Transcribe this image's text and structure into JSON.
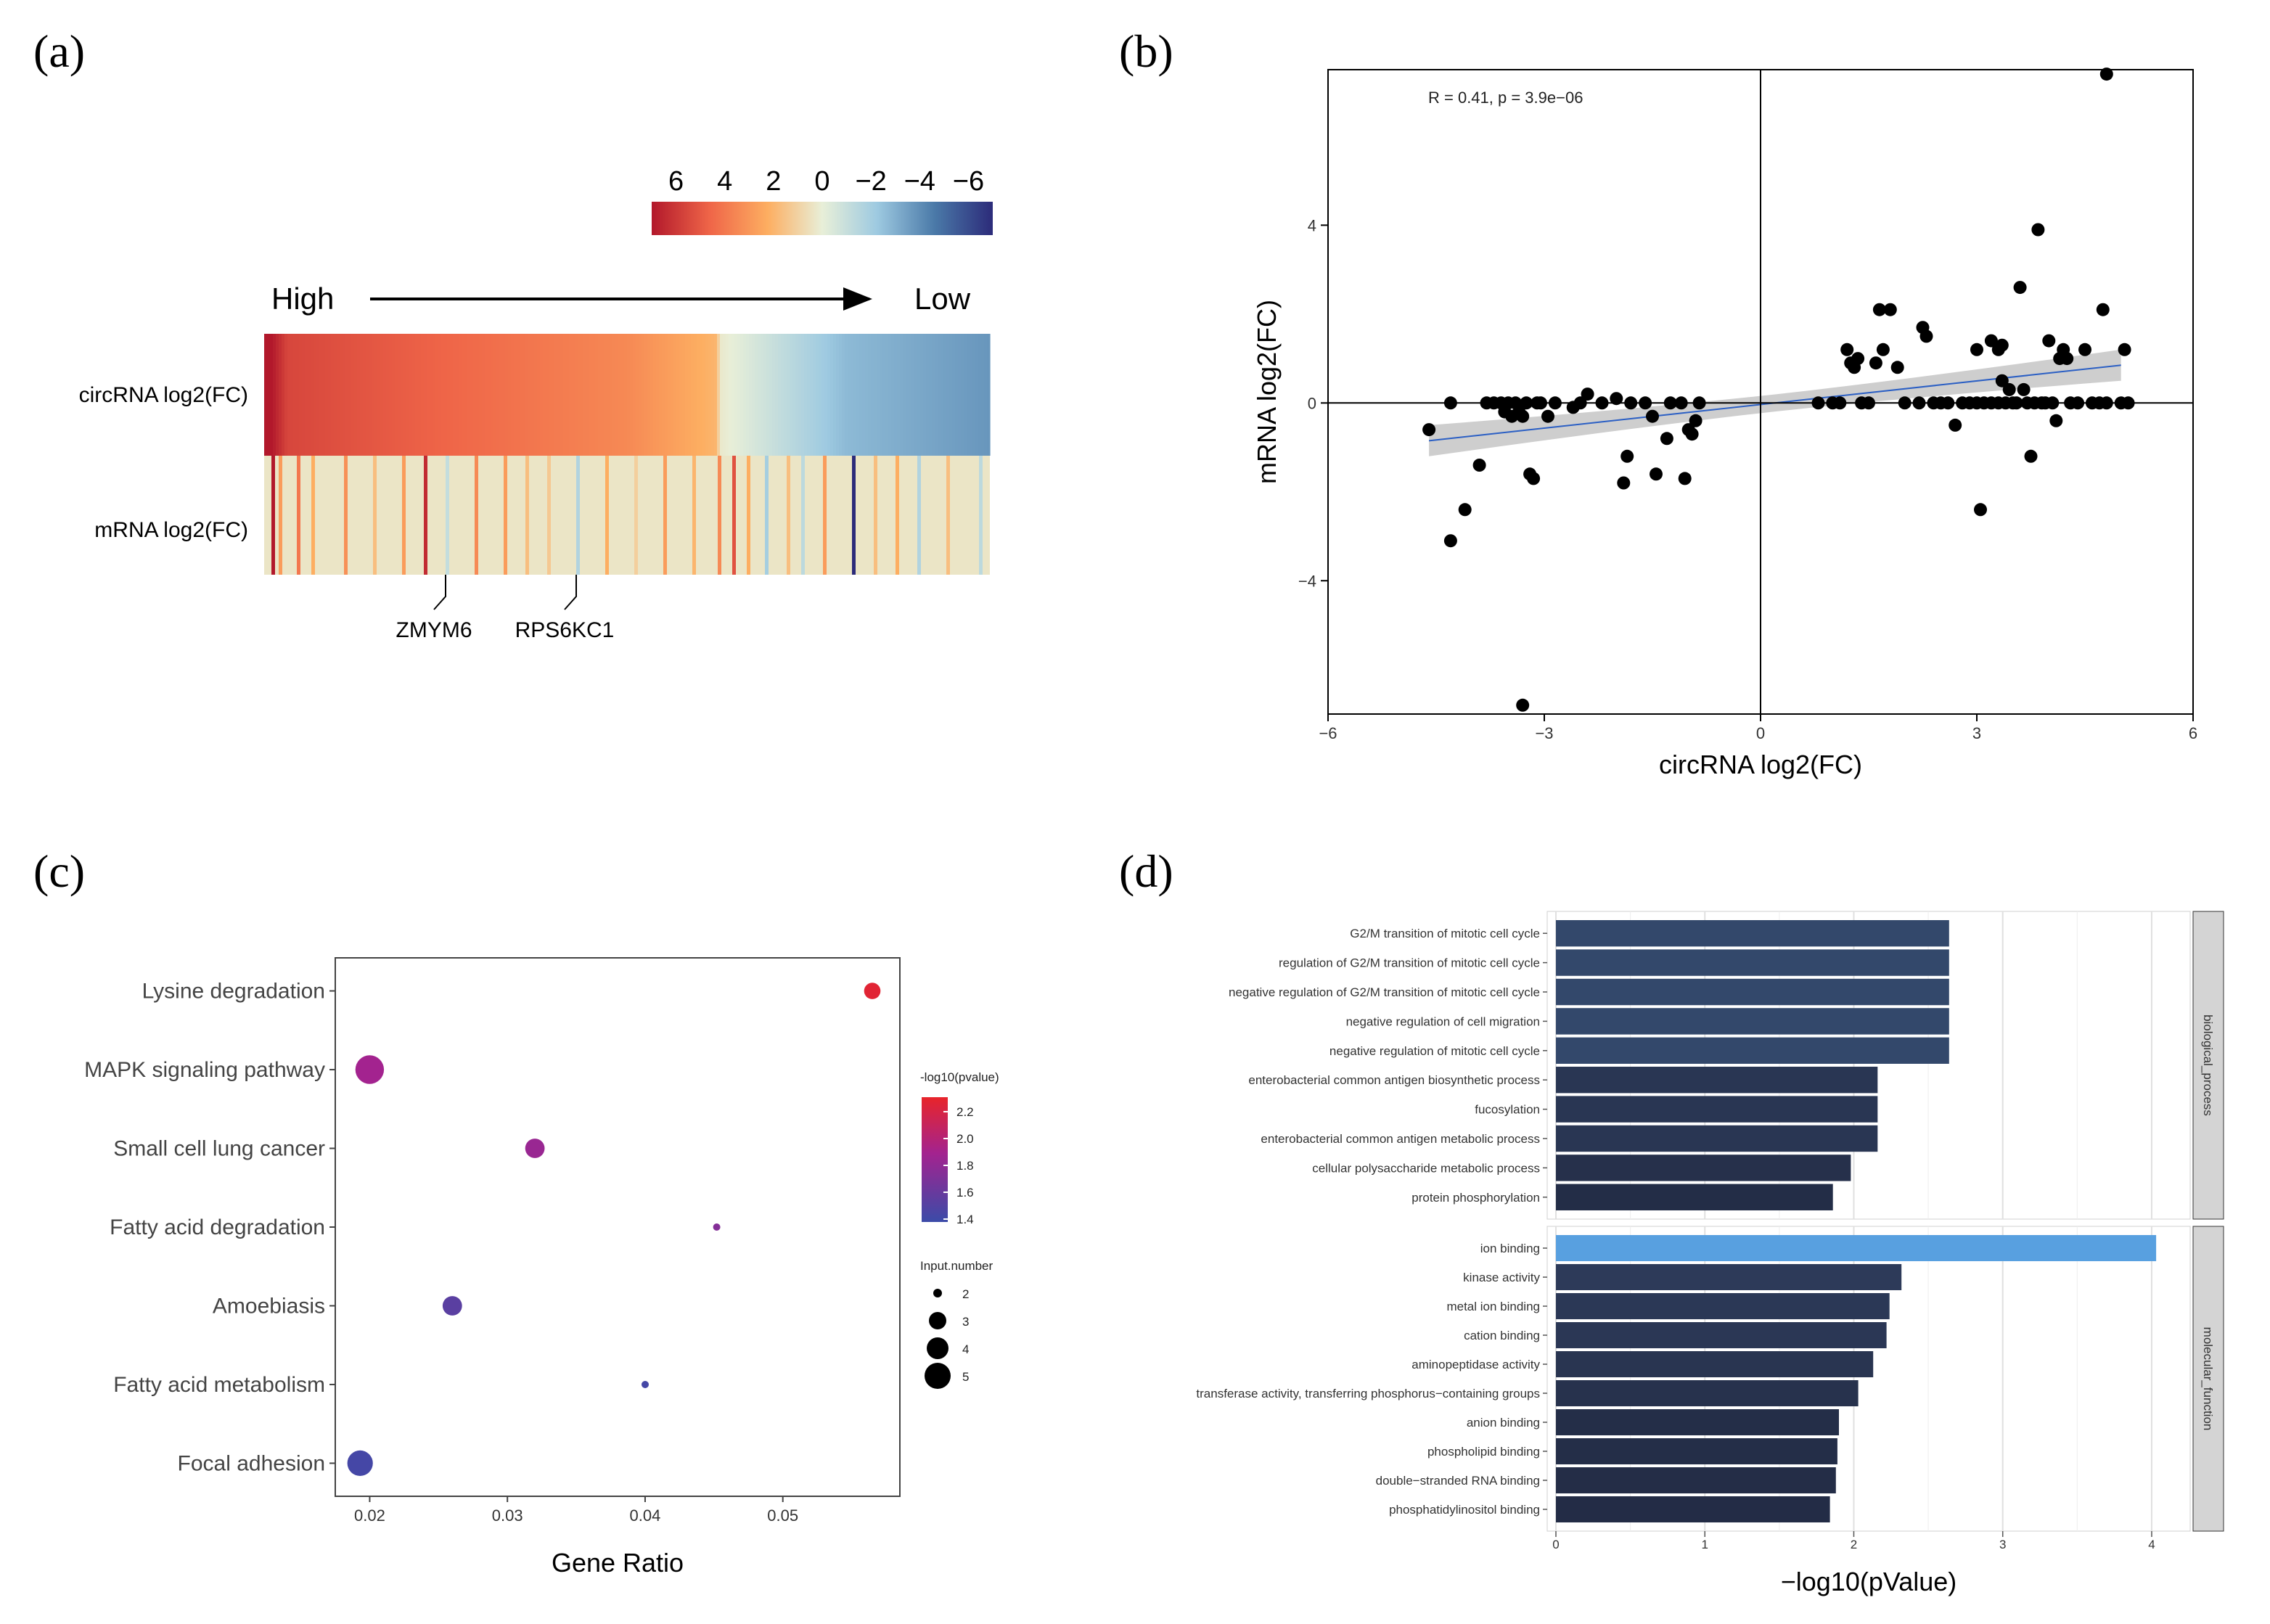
{
  "panels": {
    "a": {
      "letter": "(a)",
      "colorbar_ticks": [
        "6",
        "4",
        "2",
        "0",
        "−2",
        "−4",
        "−6"
      ],
      "arrow_high": "High",
      "arrow_low": "Low",
      "row_labels": [
        "circRNA log2(FC)",
        "mRNA log2(FC)"
      ],
      "gene_labels": [
        "ZMYM6",
        "RPS6KC1"
      ]
    },
    "b": {
      "letter": "(b)"
    },
    "c": {
      "letter": "(c)"
    },
    "d": {
      "letter": "(d)"
    }
  },
  "chart_data": [
    {
      "type": "heatmap",
      "panel": "a",
      "rows": [
        "circRNA log2(FC)",
        "mRNA log2(FC)"
      ],
      "color_scale": {
        "min": -6,
        "max": 6,
        "colors": [
          "#b2182b",
          "#ef6548",
          "#fdae61",
          "#e8efd8",
          "#9ecae1",
          "#4a79a8",
          "#2c2b7a"
        ]
      },
      "circRNA_profile": [
        {
          "pos": 0.0,
          "value": 6.5
        },
        {
          "pos": 0.03,
          "value": 4.8
        },
        {
          "pos": 0.3,
          "value": 3.8
        },
        {
          "pos": 0.5,
          "value": 3.0
        },
        {
          "pos": 0.62,
          "value": 1.8
        },
        {
          "pos": 0.628,
          "value": 0.2
        },
        {
          "pos": 0.72,
          "value": -1.2
        },
        {
          "pos": 0.8,
          "value": -2.4
        },
        {
          "pos": 1.0,
          "value": -3.3
        }
      ],
      "mRNA_base_value": 0.3,
      "mRNA_stripes": [
        {
          "pos": 0.01,
          "value": 6.0
        },
        {
          "pos": 0.02,
          "value": 2.5
        },
        {
          "pos": 0.045,
          "value": 3.5
        },
        {
          "pos": 0.065,
          "value": 2.0
        },
        {
          "pos": 0.11,
          "value": 2.8
        },
        {
          "pos": 0.15,
          "value": 1.5
        },
        {
          "pos": 0.19,
          "value": 2.5
        },
        {
          "pos": 0.22,
          "value": 5.5
        },
        {
          "pos": 0.25,
          "value": -1.0
        },
        {
          "pos": 0.29,
          "value": 3.0
        },
        {
          "pos": 0.33,
          "value": 2.5
        },
        {
          "pos": 0.36,
          "value": 1.5
        },
        {
          "pos": 0.39,
          "value": 1.2
        },
        {
          "pos": 0.43,
          "value": -1.5
        },
        {
          "pos": 0.47,
          "value": 2.0
        },
        {
          "pos": 0.51,
          "value": 1.0
        },
        {
          "pos": 0.55,
          "value": 2.5
        },
        {
          "pos": 0.59,
          "value": 1.8
        },
        {
          "pos": 0.625,
          "value": 3.0
        },
        {
          "pos": 0.645,
          "value": 4.5
        },
        {
          "pos": 0.665,
          "value": 2.0
        },
        {
          "pos": 0.69,
          "value": -1.8
        },
        {
          "pos": 0.72,
          "value": 1.5
        },
        {
          "pos": 0.74,
          "value": -1.2
        },
        {
          "pos": 0.77,
          "value": 2.5
        },
        {
          "pos": 0.81,
          "value": -6.0
        },
        {
          "pos": 0.84,
          "value": 1.5
        },
        {
          "pos": 0.87,
          "value": 2.0
        },
        {
          "pos": 0.9,
          "value": -1.5
        },
        {
          "pos": 0.94,
          "value": 1.5
        },
        {
          "pos": 0.985,
          "value": -1.2
        }
      ],
      "gene_markers": [
        {
          "label": "ZMYM6",
          "pos": 0.25
        },
        {
          "label": "RPS6KC1",
          "pos": 0.43
        }
      ]
    },
    {
      "type": "scatter",
      "panel": "b",
      "annotation": "R = 0.41, p = 3.9e−06",
      "xlabel": "circRNA log2(FC)",
      "ylabel": "mRNA log2(FC)",
      "xlim": [
        -6,
        6
      ],
      "ylim": [
        -7,
        7.5
      ],
      "xticks": [
        -6,
        -3,
        0,
        3,
        6
      ],
      "yticks": [
        -4,
        0,
        4
      ],
      "xtick_labels": [
        "−6",
        "−3",
        "0",
        "3",
        "6"
      ],
      "ytick_labels": [
        "−4",
        "0",
        "4"
      ],
      "regression": {
        "x1": -4.6,
        "y1": -0.85,
        "x2": 5.0,
        "y2": 0.85,
        "band": 0.35
      },
      "points": [
        [
          -4.6,
          -0.6
        ],
        [
          -4.3,
          0
        ],
        [
          -4.3,
          -3.1
        ],
        [
          -4.1,
          -2.4
        ],
        [
          -3.9,
          -1.4
        ],
        [
          -3.8,
          0
        ],
        [
          -3.7,
          0
        ],
        [
          -3.6,
          0
        ],
        [
          -3.55,
          -0.2
        ],
        [
          -3.5,
          0
        ],
        [
          -3.45,
          -0.3
        ],
        [
          -3.4,
          0
        ],
        [
          -3.35,
          -0.2
        ],
        [
          -3.3,
          -0.3
        ],
        [
          -3.25,
          0
        ],
        [
          -3.2,
          -1.6
        ],
        [
          -3.15,
          -1.7
        ],
        [
          -3.1,
          0
        ],
        [
          -3.05,
          0
        ],
        [
          -2.95,
          -0.3
        ],
        [
          -2.85,
          0
        ],
        [
          -2.6,
          -0.1
        ],
        [
          -2.5,
          0
        ],
        [
          -2.4,
          0.2
        ],
        [
          -2.2,
          0
        ],
        [
          -2.0,
          0.1
        ],
        [
          -1.9,
          -1.8
        ],
        [
          -1.85,
          -1.2
        ],
        [
          -1.8,
          0
        ],
        [
          -1.6,
          0
        ],
        [
          -1.5,
          -0.3
        ],
        [
          -1.45,
          -1.6
        ],
        [
          -1.3,
          -0.8
        ],
        [
          -1.25,
          0
        ],
        [
          -1.1,
          0
        ],
        [
          -1.05,
          -1.7
        ],
        [
          -1.0,
          -0.6
        ],
        [
          -0.95,
          -0.7
        ],
        [
          -0.9,
          -0.4
        ],
        [
          -0.85,
          0
        ],
        [
          -3.3,
          -6.8
        ],
        [
          0.8,
          0
        ],
        [
          1.0,
          0
        ],
        [
          1.1,
          0
        ],
        [
          1.2,
          1.2
        ],
        [
          1.25,
          0.9
        ],
        [
          1.3,
          0.8
        ],
        [
          1.35,
          1.0
        ],
        [
          1.4,
          0
        ],
        [
          1.5,
          0
        ],
        [
          1.6,
          0.9
        ],
        [
          1.65,
          2.1
        ],
        [
          1.7,
          1.2
        ],
        [
          1.8,
          2.1
        ],
        [
          1.9,
          0.8
        ],
        [
          2.0,
          0
        ],
        [
          2.2,
          0
        ],
        [
          2.25,
          1.7
        ],
        [
          2.3,
          1.5
        ],
        [
          2.4,
          0
        ],
        [
          2.5,
          0
        ],
        [
          2.6,
          0
        ],
        [
          2.7,
          -0.5
        ],
        [
          2.8,
          0
        ],
        [
          2.9,
          0
        ],
        [
          3.0,
          0
        ],
        [
          3.05,
          -2.4
        ],
        [
          3.1,
          0
        ],
        [
          3.2,
          1.4
        ],
        [
          3.3,
          1.2
        ],
        [
          3.35,
          1.3
        ],
        [
          3.4,
          0
        ],
        [
          3.45,
          0.3
        ],
        [
          3.5,
          0
        ],
        [
          3.55,
          0
        ],
        [
          3.6,
          2.6
        ],
        [
          3.65,
          0.3
        ],
        [
          3.7,
          0
        ],
        [
          3.75,
          -1.2
        ],
        [
          3.8,
          0
        ],
        [
          3.85,
          3.9
        ],
        [
          3.9,
          0
        ],
        [
          3.95,
          0
        ],
        [
          4.0,
          1.4
        ],
        [
          4.05,
          0
        ],
        [
          4.1,
          -0.4
        ],
        [
          4.15,
          1.0
        ],
        [
          4.2,
          1.2
        ],
        [
          4.25,
          1.0
        ],
        [
          4.3,
          0
        ],
        [
          4.4,
          0
        ],
        [
          4.5,
          1.2
        ],
        [
          4.6,
          0
        ],
        [
          4.7,
          0
        ],
        [
          4.75,
          2.1
        ],
        [
          4.8,
          0
        ],
        [
          5.0,
          0
        ],
        [
          3.3,
          0
        ],
        [
          3.35,
          0.5
        ],
        [
          3.2,
          0
        ],
        [
          3.0,
          1.2
        ],
        [
          4.8,
          7.4
        ],
        [
          5.05,
          1.2
        ],
        [
          5.1,
          0
        ]
      ]
    },
    {
      "type": "scatter",
      "panel": "c",
      "xlabel": "Gene Ratio",
      "xlim": [
        0.0175,
        0.0585
      ],
      "xticks": [
        0.02,
        0.03,
        0.04,
        0.05
      ],
      "xtick_labels": [
        "0.02",
        "0.03",
        "0.04",
        "0.05"
      ],
      "categories": [
        "Lysine degradation",
        "MAPK signaling pathway",
        "Small cell lung cancer",
        "Fatty acid degradation",
        "Amoebiasis",
        "Fatty acid metabolism",
        "Focal adhesion"
      ],
      "points": [
        {
          "category": "Lysine degradation",
          "x": 0.0565,
          "size": 3,
          "neglog10p": 2.3
        },
        {
          "category": "MAPK signaling pathway",
          "x": 0.02,
          "size": 5,
          "neglog10p": 1.85
        },
        {
          "category": "Small cell lung cancer",
          "x": 0.032,
          "size": 3.5,
          "neglog10p": 1.8
        },
        {
          "category": "Fatty acid degradation",
          "x": 0.0452,
          "size": 1.5,
          "neglog10p": 1.7
        },
        {
          "category": "Amoebiasis",
          "x": 0.026,
          "size": 3.5,
          "neglog10p": 1.5
        },
        {
          "category": "Fatty acid metabolism",
          "x": 0.04,
          "size": 1.5,
          "neglog10p": 1.4
        },
        {
          "category": "Focal adhesion",
          "x": 0.0193,
          "size": 4.5,
          "neglog10p": 1.4
        }
      ],
      "legend_color": {
        "title": "-log10(pvalue)",
        "ticks": [
          "2.2",
          "2.0",
          "1.8",
          "1.6",
          "1.4"
        ],
        "range": [
          1.35,
          2.35
        ]
      },
      "legend_size": {
        "title": "Input.number",
        "entries": [
          "2",
          "3",
          "4",
          "5"
        ]
      }
    },
    {
      "type": "bar",
      "panel": "d",
      "orientation": "horizontal",
      "xlabel": "−log10(pValue)",
      "xlim": [
        0,
        4.2
      ],
      "xticks": [
        0,
        1,
        2,
        3,
        4
      ],
      "xtick_labels": [
        "0",
        "1",
        "2",
        "3",
        "4"
      ],
      "facets": [
        {
          "name": "biological_process",
          "categories": [
            "G2/M transition of mitotic cell cycle",
            "regulation of G2/M transition of mitotic cell cycle",
            "negative regulation of G2/M transition of mitotic cell cycle",
            "negative regulation of cell migration",
            "negative regulation of mitotic cell cycle",
            "enterobacterial common antigen biosynthetic process",
            "fucosylation",
            "enterobacterial common antigen metabolic process",
            "cellular polysaccharide metabolic process",
            "protein phosphorylation"
          ],
          "values": [
            2.64,
            2.64,
            2.64,
            2.64,
            2.64,
            2.16,
            2.16,
            2.16,
            1.98,
            1.86
          ]
        },
        {
          "name": "molecular_function",
          "categories": [
            "ion binding",
            "kinase activity",
            "metal ion binding",
            "cation binding",
            "aminopeptidase activity",
            "transferase activity, transferring phosphorus−containing groups",
            "anion binding",
            "phospholipid binding",
            "double−stranded RNA binding",
            "phosphatidylinositol binding"
          ],
          "values": [
            4.03,
            2.32,
            2.24,
            2.22,
            2.13,
            2.03,
            1.9,
            1.89,
            1.88,
            1.84
          ]
        }
      ]
    }
  ]
}
